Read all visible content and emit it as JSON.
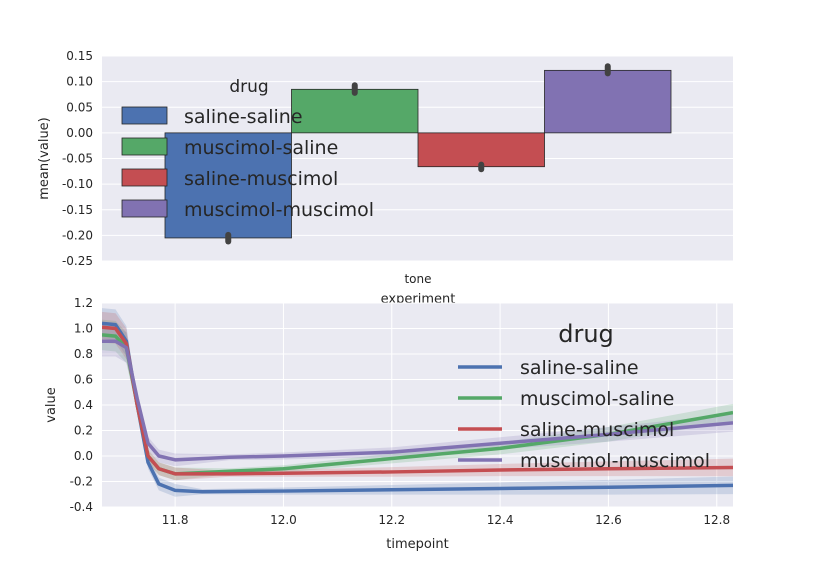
{
  "chart_data": [
    {
      "type": "bar",
      "xlabel": "experiment",
      "ylabel": "mean(value)",
      "categories": [
        "tone"
      ],
      "ylim": [
        -0.25,
        0.15
      ],
      "yticks": [
        "0.15",
        "0.10",
        "0.05",
        "0.00",
        "-0.05",
        "-0.10",
        "-0.15",
        "-0.20",
        "-0.25"
      ],
      "grid": true,
      "legend": {
        "title": "drug",
        "placement": "upper-left"
      },
      "series": [
        {
          "name": "saline-saline",
          "color": "#4c72b0",
          "values": [
            -0.205
          ]
        },
        {
          "name": "muscimol-saline",
          "color": "#55a868",
          "values": [
            0.085
          ]
        },
        {
          "name": "saline-muscimol",
          "color": "#c44e52",
          "values": [
            -0.066
          ]
        },
        {
          "name": "muscimol-muscimol",
          "color": "#8172b2",
          "values": [
            0.122
          ]
        }
      ],
      "error_ranges": [
        [
          -0.212,
          -0.199
        ],
        [
          0.078,
          0.093
        ],
        [
          -0.071,
          -0.062
        ],
        [
          0.116,
          0.13
        ]
      ]
    },
    {
      "type": "line",
      "xlabel": "timepoint",
      "ylabel": "value",
      "xlim": [
        11.665,
        12.83
      ],
      "ylim": [
        -0.4,
        1.2
      ],
      "xticks": [
        "11.8",
        "12.0",
        "12.2",
        "12.4",
        "12.6",
        "12.8"
      ],
      "yticks": [
        "1.2",
        "1.0",
        "0.8",
        "0.6",
        "0.4",
        "0.2",
        "0.0",
        "-0.2",
        "-0.4"
      ],
      "grid": true,
      "legend": {
        "title": "drug",
        "placement": "upper-right"
      },
      "series": [
        {
          "name": "saline-saline",
          "color": "#4c72b0",
          "x": [
            11.665,
            11.69,
            11.71,
            11.73,
            11.75,
            11.77,
            11.8,
            11.85,
            12.0,
            12.2,
            12.4,
            12.6,
            12.83
          ],
          "y": [
            1.04,
            1.03,
            0.9,
            0.4,
            -0.05,
            -0.22,
            -0.27,
            -0.28,
            -0.275,
            -0.265,
            -0.255,
            -0.245,
            -0.23
          ]
        },
        {
          "name": "muscimol-saline",
          "color": "#55a868",
          "x": [
            11.665,
            11.69,
            11.71,
            11.73,
            11.75,
            11.77,
            11.8,
            11.9,
            12.0,
            12.2,
            12.4,
            12.6,
            12.83
          ],
          "y": [
            0.95,
            0.94,
            0.85,
            0.4,
            0.0,
            -0.1,
            -0.14,
            -0.12,
            -0.1,
            -0.02,
            0.06,
            0.17,
            0.34
          ]
        },
        {
          "name": "saline-muscimol",
          "color": "#c44e52",
          "x": [
            11.665,
            11.69,
            11.71,
            11.73,
            11.75,
            11.77,
            11.8,
            11.9,
            12.0,
            12.2,
            12.4,
            12.6,
            12.83
          ],
          "y": [
            1.01,
            1.0,
            0.88,
            0.4,
            0.0,
            -0.1,
            -0.14,
            -0.14,
            -0.135,
            -0.125,
            -0.11,
            -0.1,
            -0.09
          ]
        },
        {
          "name": "muscimol-muscimol",
          "color": "#8172b2",
          "x": [
            11.665,
            11.69,
            11.71,
            11.73,
            11.75,
            11.77,
            11.8,
            11.9,
            12.0,
            12.2,
            12.4,
            12.6,
            12.83
          ],
          "y": [
            0.9,
            0.9,
            0.85,
            0.45,
            0.1,
            0.0,
            -0.03,
            -0.01,
            0.0,
            0.03,
            0.1,
            0.17,
            0.26
          ]
        }
      ]
    }
  ]
}
